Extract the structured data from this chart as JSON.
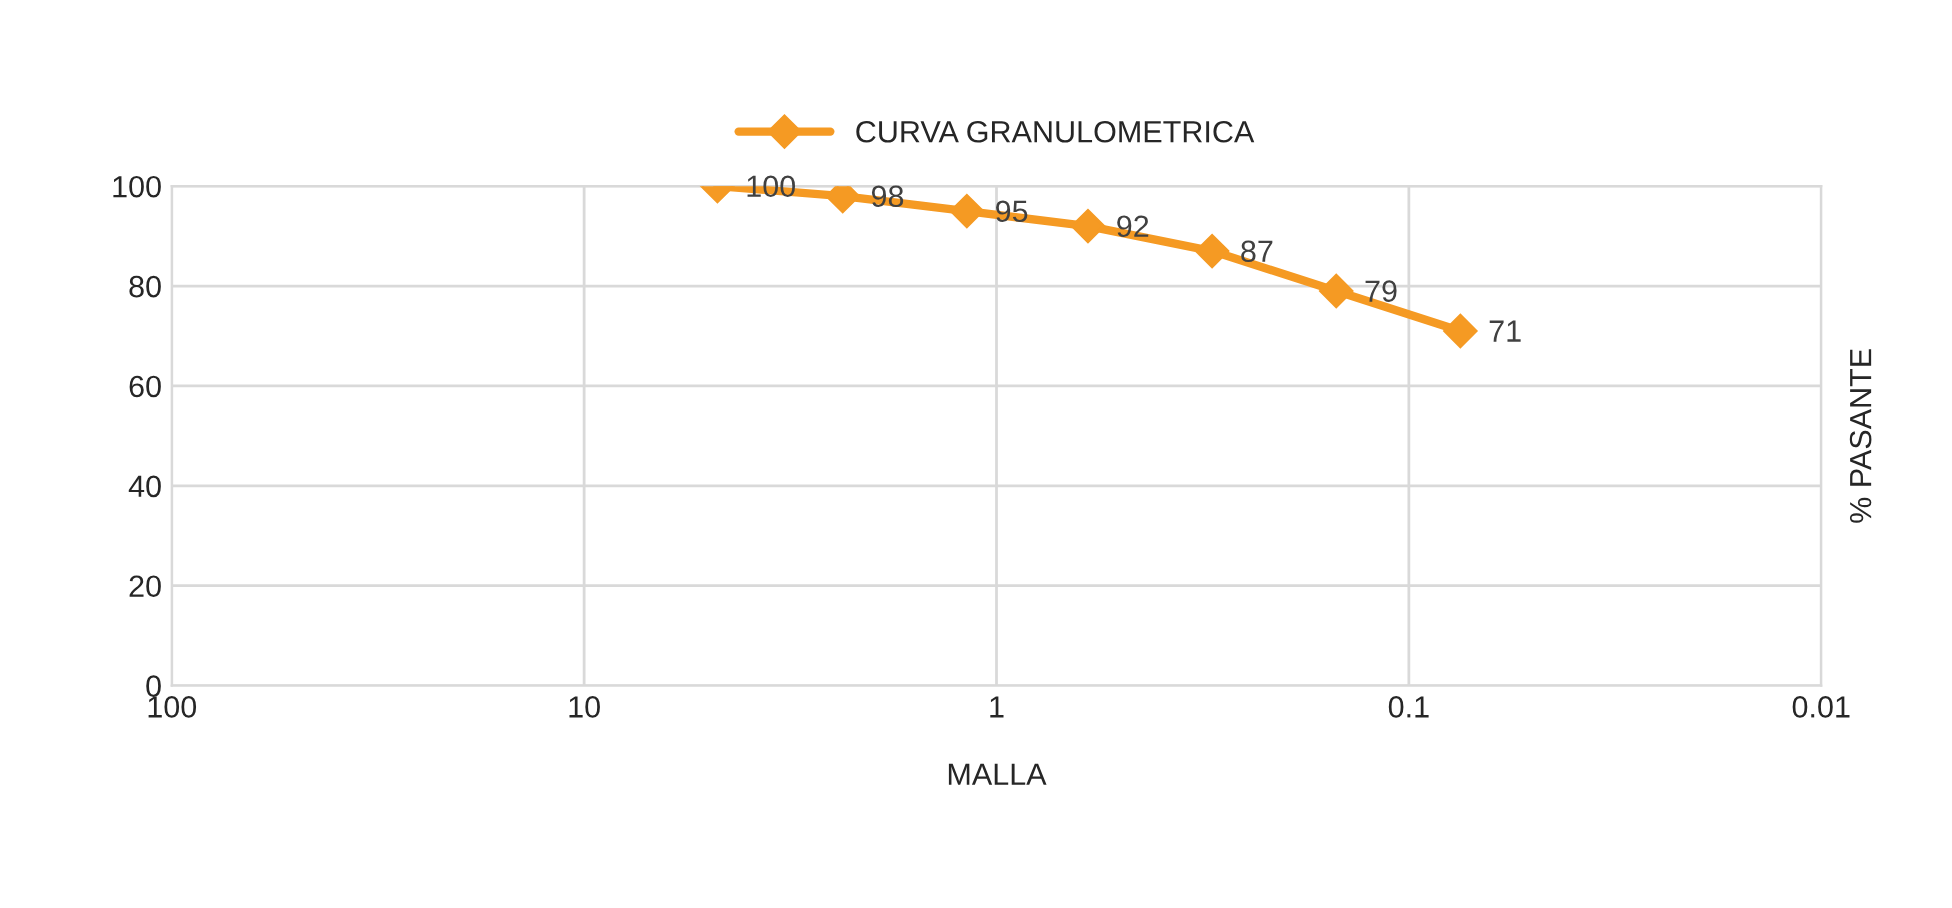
{
  "chart_data": {
    "type": "line",
    "xlabel": "MALLA",
    "ylabel": "% PASANTE",
    "x": [
      4.75,
      2.36,
      1.18,
      0.6,
      0.3,
      0.15,
      0.075
    ],
    "series": [
      {
        "name": "CURVA GRANULOMETRICA",
        "color": "#f59a23",
        "values": [
          100,
          98,
          95,
          92,
          87,
          79,
          71
        ]
      }
    ],
    "log": "x",
    "xlim": [
      100,
      0.01
    ],
    "xticks": [
      100,
      10,
      1,
      0.1,
      0.01
    ],
    "ylim": [
      0,
      100
    ],
    "yticks": [
      0,
      20,
      40,
      60,
      80,
      100
    ],
    "grid": true,
    "legend": "top",
    "marker": "diamond",
    "line_style": "solid",
    "data_labels": true
  }
}
